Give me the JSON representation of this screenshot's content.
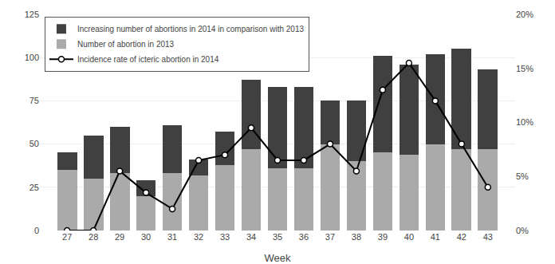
{
  "chart_data": {
    "type": "bar",
    "stacked": true,
    "xlabel": "Week",
    "categories": [
      "27",
      "28",
      "29",
      "30",
      "31",
      "32",
      "33",
      "34",
      "35",
      "36",
      "37",
      "38",
      "39",
      "40",
      "41",
      "42",
      "43"
    ],
    "series": [
      {
        "name": "Number of abortion in 2013",
        "color": "#aaaaaa",
        "values": [
          35,
          30,
          33,
          20,
          33,
          32,
          38,
          47,
          36,
          36,
          50,
          40,
          45,
          44,
          50,
          47,
          47
        ]
      },
      {
        "name": "Increasing number of abortions in 2014 in comparison with 2013",
        "color": "#404040",
        "values": [
          10,
          25,
          27,
          9,
          28,
          9,
          19,
          40,
          47,
          47,
          25,
          35,
          56,
          52,
          52,
          58,
          46
        ]
      },
      {
        "name": "Incidence rate of icteric abortion in 2014",
        "type": "line",
        "axis": "y2",
        "color": "#000000",
        "marker": "circle",
        "values": [
          0.0,
          0.0,
          5.5,
          3.5,
          2.0,
          6.5,
          7.0,
          9.5,
          6.5,
          6.5,
          8.0,
          5.5,
          13.0,
          15.5,
          12.0,
          8.0,
          4.0
        ]
      }
    ],
    "ylim": [
      0,
      125
    ],
    "yticks": [
      0,
      25,
      50,
      75,
      100,
      125
    ],
    "y2lim": [
      0,
      20
    ],
    "y2ticks": [
      {
        "value": 0,
        "label": "0%"
      },
      {
        "value": 5,
        "label": "5%"
      },
      {
        "value": 10,
        "label": "10%"
      },
      {
        "value": 15,
        "label": "15%"
      },
      {
        "value": 20,
        "label": "20%"
      }
    ],
    "grid": true,
    "legend": "upper left"
  }
}
